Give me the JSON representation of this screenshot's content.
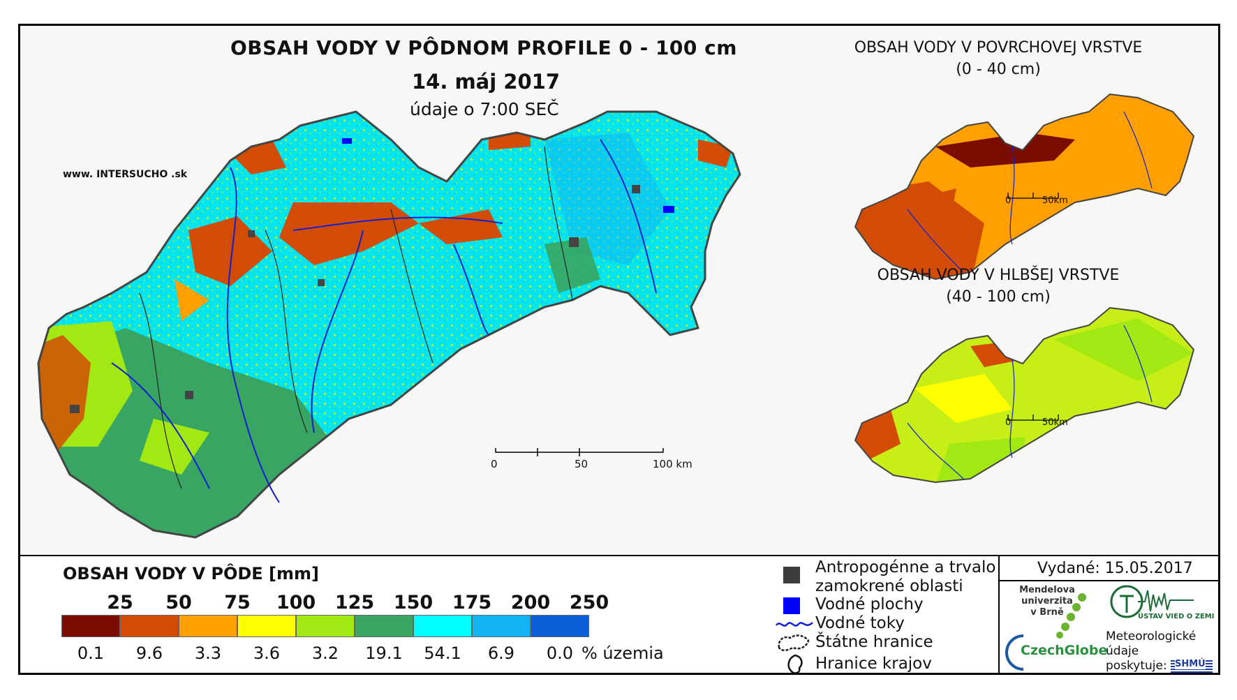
{
  "header": {
    "title": "OBSAH VODY V PÔDNOM PROFILE 0 - 100 cm",
    "date": "14. máj 2017",
    "time": "údaje o 7:00 SEČ",
    "website": "www. INTERSUCHO .sk"
  },
  "surface_panel": {
    "title": "OBSAH VODY V POVRCHOVEJ VRSTVE",
    "depth": "(0 - 40 cm)"
  },
  "deep_panel": {
    "title": "OBSAH VODY V HLBŠEJ VRSTVE",
    "depth": "(40 - 100 cm)"
  },
  "main_scale": {
    "ticks": [
      "0",
      "50",
      "100 km"
    ]
  },
  "small_scale": {
    "ticks": [
      "0",
      "50km"
    ]
  },
  "legend": {
    "title": "OBSAH VODY V PÔDE [mm]",
    "unit_label": "% územia",
    "classes": [
      {
        "label": "25",
        "color": "#7a0c00",
        "percent": "0.1"
      },
      {
        "label": "50",
        "color": "#d24c06",
        "percent": "9.6"
      },
      {
        "label": "75",
        "color": "#ffa000",
        "percent": "3.3"
      },
      {
        "label": "100",
        "color": "#ffff00",
        "percent": "3.6"
      },
      {
        "label": "125",
        "color": "#a2e812",
        "percent": "3.2"
      },
      {
        "label": "150",
        "color": "#38a562",
        "percent": "19.1"
      },
      {
        "label": "175",
        "color": "#00ffff",
        "percent": "54.1"
      },
      {
        "label": "200",
        "color": "#12b4f3",
        "percent": "6.9"
      },
      {
        "label": "250",
        "color": "#0a5ed8",
        "percent": "0.0"
      }
    ]
  },
  "symbols": {
    "urban": "Antropogénne a trvalo zamokrené oblasti",
    "water_bodies": "Vodné plochy",
    "rivers": "Vodné toky",
    "state_border": "Štátne hranice",
    "region_border": "Hranice krajov"
  },
  "credits": {
    "issued": "Vydané: 15.05.2017",
    "mendel": "Mendelova univerzita v Brně",
    "czechglobe": "CzechGlobe",
    "uvgz": "ÚSTAV VIED O ZEMI",
    "meteo": "Meteorologické údaje poskytuje:",
    "shmu": "SHMÚ"
  }
}
